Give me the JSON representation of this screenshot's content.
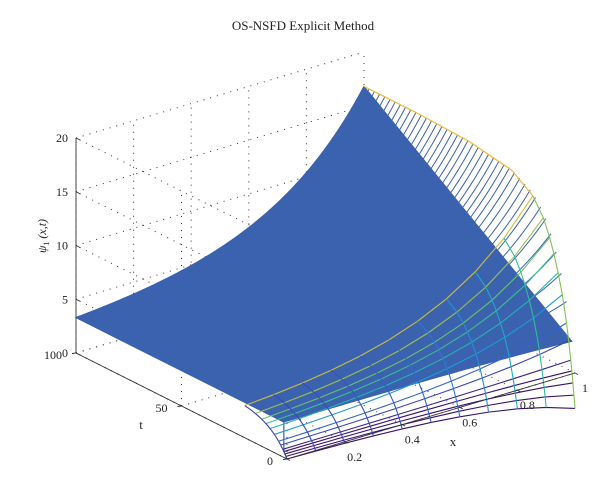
{
  "chart_data": {
    "type": "surface",
    "title": "OS-NSFD Explicit Method",
    "xlabel": "x",
    "ylabel": "t",
    "zlabel": "ψ1 (x,t)",
    "xlim": [
      0,
      1
    ],
    "ylim": [
      0,
      100
    ],
    "zlim": [
      0,
      20
    ],
    "x_ticks": [
      "0",
      "0.2",
      "0.4",
      "0.6",
      "0.8",
      "1"
    ],
    "y_ticks": [
      "0",
      "50",
      "100"
    ],
    "z_ticks": [
      "0",
      "5",
      "10",
      "15",
      "20"
    ],
    "grid": true,
    "x": [
      0,
      0.1,
      0.2,
      0.3,
      0.4,
      0.5,
      0.6,
      0.7,
      0.8,
      0.9,
      1.0
    ],
    "t": [
      0,
      0.5,
      1,
      1.5,
      2,
      3,
      4,
      6,
      8,
      10,
      12,
      15,
      20,
      30,
      50,
      75,
      100
    ],
    "values_at_x1": [
      0.0,
      1.0,
      1.9,
      2.8,
      3.6,
      5.0,
      6.3,
      8.3,
      9.8,
      11.1,
      12.2,
      13.5,
      14.8,
      16.0,
      16.6,
      16.8,
      16.8
    ],
    "surface_level": 3.3,
    "colors": {
      "surface": "#3b62ae",
      "colormap": [
        "#3a0f6e",
        "#3b3fb8",
        "#2f6fd8",
        "#1aa5d6",
        "#2bbf9a",
        "#7cc35c",
        "#c9be3a",
        "#f0bb33"
      ]
    }
  }
}
